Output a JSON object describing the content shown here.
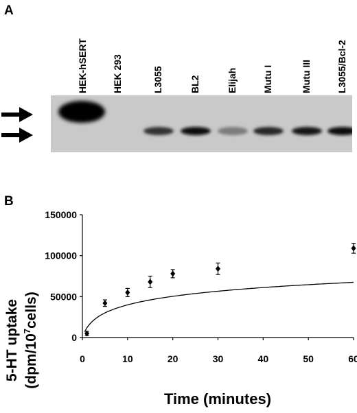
{
  "panel_a": {
    "label": "A",
    "lanes": [
      {
        "name": "HEK-hSERT",
        "band_intensity": 1.0,
        "band_position": "upper"
      },
      {
        "name": "HEK 293",
        "band_intensity": 0.0,
        "band_position": "none"
      },
      {
        "name": "L3055",
        "band_intensity": 0.75,
        "band_position": "lower"
      },
      {
        "name": "BL2",
        "band_intensity": 0.95,
        "band_position": "lower"
      },
      {
        "name": "Elijah",
        "band_intensity": 0.35,
        "band_position": "lower"
      },
      {
        "name": "Mutu I",
        "band_intensity": 0.8,
        "band_position": "lower"
      },
      {
        "name": "Mutu III",
        "band_intensity": 0.9,
        "band_position": "lower"
      },
      {
        "name": "L3055/Bcl-2",
        "band_intensity": 0.95,
        "band_position": "lower"
      }
    ],
    "arrows": 2
  },
  "panel_b": {
    "label": "B",
    "chart_data": {
      "type": "scatter",
      "title": "",
      "xlabel": "Time (minutes)",
      "ylabel_line1": "5-HT uptake",
      "ylabel_line2_prefix": "(dpm/10",
      "ylabel_line2_sup": "7",
      "ylabel_line2_suffix": "cells)",
      "xlim": [
        0,
        60
      ],
      "ylim": [
        0,
        150000
      ],
      "xticks": [
        0,
        10,
        20,
        30,
        40,
        50,
        60
      ],
      "yticks": [
        0,
        50000,
        100000,
        150000
      ],
      "ytick_labels": [
        "0",
        "50000",
        "100000",
        "150000"
      ],
      "grid": false,
      "series": [
        {
          "x": [
            1,
            5,
            10,
            15,
            20,
            30,
            60
          ],
          "y": [
            5000,
            42000,
            55000,
            68000,
            78000,
            84000,
            109000
          ],
          "err": [
            2500,
            4000,
            5000,
            7000,
            5000,
            7000,
            6000
          ]
        }
      ],
      "fit_curve": true
    }
  }
}
